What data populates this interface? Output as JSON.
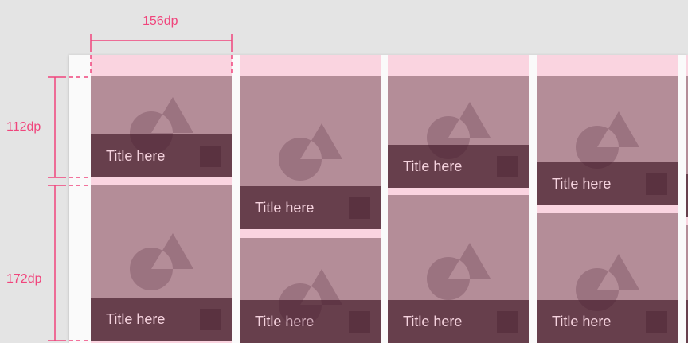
{
  "annotations": {
    "width_label": "156dp",
    "height_small_label": "112dp",
    "height_large_label": "172dp"
  },
  "colors": {
    "accent": "#f0457c",
    "tile_image": "#b48d98",
    "caption_bar": "#673f4c",
    "column_bg": "#fad4e0"
  },
  "tiles": [
    {
      "title": "Title here",
      "icon": "image-placeholder-icon"
    },
    {
      "title": "Title here",
      "icon": "image-placeholder-icon"
    },
    {
      "title": "Title here",
      "icon": "image-placeholder-icon"
    },
    {
      "title": "Title here",
      "icon": "image-placeholder-icon"
    },
    {
      "title": "Title here",
      "icon": "image-placeholder-icon"
    },
    {
      "title": "Title here",
      "icon": "image-placeholder-icon"
    },
    {
      "title": "Title here",
      "icon": "image-placeholder-icon"
    },
    {
      "title": "Title here",
      "icon": "image-placeholder-icon"
    }
  ]
}
